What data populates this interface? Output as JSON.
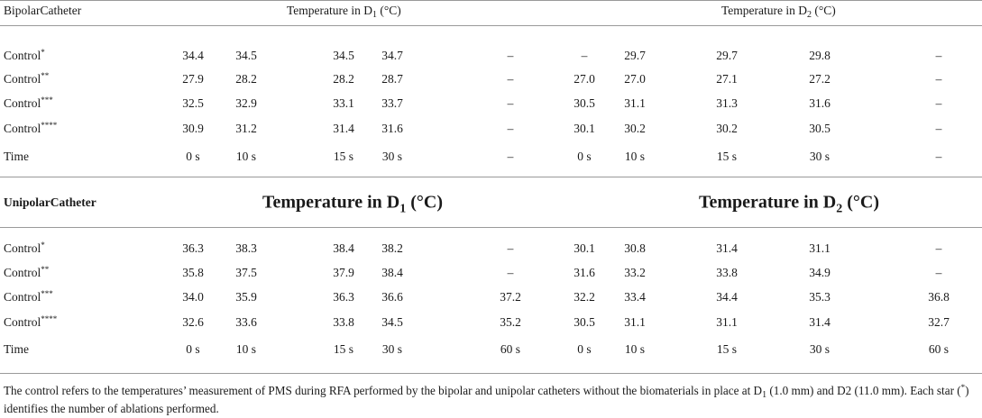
{
  "bipolar": {
    "section_label": "BipolarCatheter",
    "header_d1": {
      "prefix": "Temperature in D",
      "sub": "1",
      "suffix": " (°C)"
    },
    "header_d2": {
      "prefix": "Temperature in D",
      "sub": "2",
      "suffix": " (°C)"
    },
    "rows": [
      {
        "label": "Control",
        "stars": "*",
        "values": [
          "34.4",
          "34.5",
          "34.5",
          "34.7",
          "–",
          "–",
          "29.7",
          "29.7",
          "29.8",
          "–"
        ]
      },
      {
        "label": "Control",
        "stars": "**",
        "values": [
          "27.9",
          "28.2",
          "28.2",
          "28.7",
          "–",
          "27.0",
          "27.0",
          "27.1",
          "27.2",
          "–"
        ]
      },
      {
        "label": "Control",
        "stars": "***",
        "values": [
          "32.5",
          "32.9",
          "33.1",
          "33.7",
          "–",
          "30.5",
          "31.1",
          "31.3",
          "31.6",
          "–"
        ]
      },
      {
        "label": "Control",
        "stars": "****",
        "values": [
          "30.9",
          "31.2",
          "31.4",
          "31.6",
          "–",
          "30.1",
          "30.2",
          "30.2",
          "30.5",
          "–"
        ]
      },
      {
        "label": "Time",
        "stars": "",
        "values": [
          "0 s",
          "10 s",
          "15 s",
          "30 s",
          "–",
          "0 s",
          "10 s",
          "15 s",
          "30 s",
          "–"
        ]
      }
    ]
  },
  "unipolar": {
    "section_label": "UnipolarCatheter",
    "header_d1": {
      "prefix": "Temperature in D",
      "sub": "1",
      "suffix": " (°C)"
    },
    "header_d2": {
      "prefix": "Temperature in D",
      "sub": "2",
      "suffix": " (°C)"
    },
    "rows": [
      {
        "label": "Control",
        "stars": "*",
        "values": [
          "36.3",
          "38.3",
          "38.4",
          "38.2",
          "–",
          "30.1",
          "30.8",
          "31.4",
          "31.1",
          "–"
        ]
      },
      {
        "label": "Control",
        "stars": "**",
        "values": [
          "35.8",
          "37.5",
          "37.9",
          "38.4",
          "–",
          "31.6",
          "33.2",
          "33.8",
          "34.9",
          "–"
        ]
      },
      {
        "label": "Control",
        "stars": "***",
        "values": [
          "34.0",
          "35.9",
          "36.3",
          "36.6",
          "37.2",
          "32.2",
          "33.4",
          "34.4",
          "35.3",
          "36.8"
        ]
      },
      {
        "label": "Control",
        "stars": "****",
        "values": [
          "32.6",
          "33.6",
          "33.8",
          "34.5",
          "35.2",
          "30.5",
          "31.1",
          "31.1",
          "31.4",
          "32.7"
        ]
      },
      {
        "label": "Time",
        "stars": "",
        "values": [
          "0 s",
          "10 s",
          "15 s",
          "30 s",
          "60 s",
          "0 s",
          "10 s",
          "15 s",
          "30 s",
          "60 s"
        ]
      }
    ]
  },
  "footnote": {
    "part1": "The control refers to the temperatures’ measurement of PMS during RFA performed by the bipolar and unipolar catheters without the biomaterials in place at D",
    "part1_sub": "1",
    "part2": " (1.0 mm) and D2 (11.0 mm). Each star (",
    "part2_sup": "*",
    "part3": ") identifies the number of ablations performed."
  }
}
